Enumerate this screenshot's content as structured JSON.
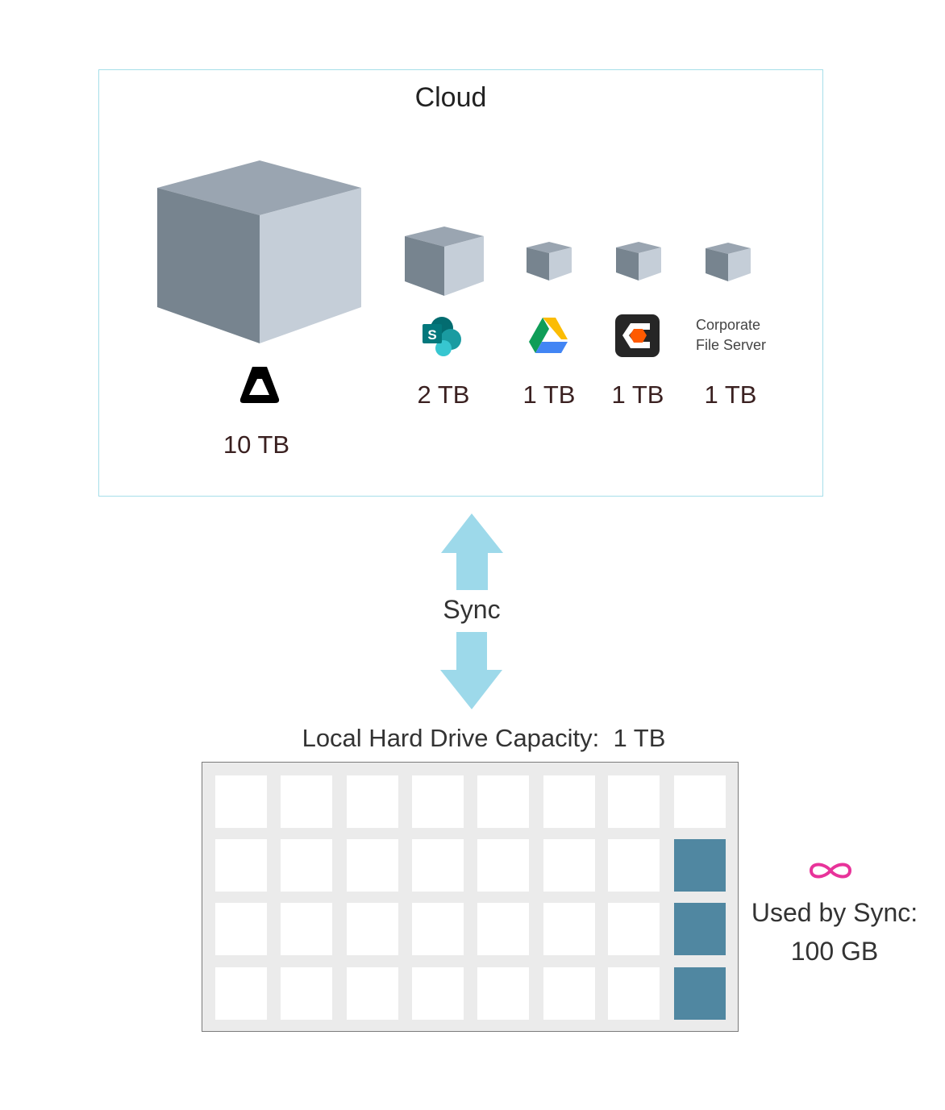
{
  "cloud": {
    "title": "Cloud",
    "providers": [
      {
        "name": "big-storage",
        "icon": "delta-logo-icon",
        "size": "10 TB"
      },
      {
        "name": "sharepoint",
        "icon": "sharepoint-icon",
        "size": "2 TB"
      },
      {
        "name": "google-drive",
        "icon": "google-drive-icon",
        "size": "1 TB"
      },
      {
        "name": "egnyte",
        "icon": "egnyte-icon",
        "size": "1 TB"
      },
      {
        "name": "corporate-file-server",
        "label_line1": "Corporate",
        "label_line2": "File Server",
        "size": "1 TB"
      }
    ]
  },
  "sync": {
    "label": "Sync",
    "arrow_color": "#9dd9ea"
  },
  "local": {
    "label": "Local Hard Drive Capacity:  1 TB",
    "grid_rows": 4,
    "grid_cols": 8,
    "used_blocks": 3,
    "used_color": "#5087a1",
    "used_label_line1": "Used by Sync:",
    "used_label_line2": "100 GB",
    "infinity_color": "#e8339a"
  },
  "colors": {
    "cube_top": "#9aa5b1",
    "cube_left": "#77848f",
    "cube_right": "#c5ced8",
    "cloud_border": "#a6dfe9"
  }
}
